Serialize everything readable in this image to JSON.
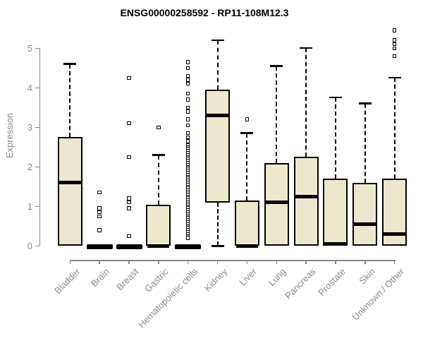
{
  "page": {
    "background": "#ffffff"
  },
  "chart_data": {
    "type": "boxplot",
    "title": "ENSG00000258592 - RP11-108M12.3",
    "ylabel": "Expression",
    "xlabel": "",
    "ylim": [
      0,
      5
    ],
    "yticks": [
      0,
      1,
      2,
      3,
      4,
      5
    ],
    "grid": false,
    "legend_position": "none",
    "categories": [
      "Bladder",
      "Brain",
      "Breast",
      "Gastric",
      "Hematopoietic cells",
      "Kidney",
      "Liver",
      "Lung",
      "Pancreas",
      "Prostate",
      "Skin",
      "Unknown / Other"
    ],
    "series": [
      {
        "name": "Bladder",
        "whisker_low": 0,
        "q1": 0,
        "median": 1.6,
        "q3": 2.75,
        "whisker_high": 4.6,
        "outliers": []
      },
      {
        "name": "Brain",
        "whisker_low": 0,
        "q1": 0,
        "median": 0,
        "q3": 0,
        "whisker_high": 0,
        "outliers": [
          1.35,
          0.95,
          0.85,
          0.75,
          0.4
        ]
      },
      {
        "name": "Breast",
        "whisker_low": 0,
        "q1": 0,
        "median": 0,
        "q3": 0,
        "whisker_high": 0,
        "outliers": [
          4.25,
          3.1,
          2.25,
          1.2,
          1.1,
          0.95,
          0.25
        ]
      },
      {
        "name": "Gastric",
        "whisker_low": 0,
        "q1": 0,
        "median": 0,
        "q3": 1.05,
        "whisker_high": 2.3,
        "outliers": [
          3.0
        ]
      },
      {
        "name": "Hematopoietic cells",
        "whisker_low": 0,
        "q1": 0,
        "median": 0,
        "q3": 0,
        "whisker_high": 0,
        "outliers": [
          4.65,
          4.5,
          4.3,
          4.2,
          4.1,
          3.85,
          3.7,
          3.5,
          3.4,
          3.2,
          3.05,
          2.85,
          2.75,
          2.65,
          2.55,
          2.5,
          2.45,
          2.4,
          2.35,
          2.3,
          2.25,
          2.2,
          2.15,
          2.1,
          2.05,
          2.0,
          1.95,
          1.9,
          1.85,
          1.8,
          1.75,
          1.7,
          1.65,
          1.6,
          1.55,
          1.5,
          1.45,
          1.4,
          1.35,
          1.3,
          1.25,
          1.2,
          1.15,
          1.1,
          1.05,
          1.0,
          0.95,
          0.9,
          0.85,
          0.8,
          0.75,
          0.7,
          0.65,
          0.6,
          0.55,
          0.5,
          0.45,
          0.4,
          0.35,
          0.3,
          0.25,
          0.2
        ]
      },
      {
        "name": "Kidney",
        "whisker_low": 0,
        "q1": 1.1,
        "median": 3.3,
        "q3": 3.95,
        "whisker_high": 5.2,
        "outliers": []
      },
      {
        "name": "Liver",
        "whisker_low": 0,
        "q1": 0,
        "median": 0,
        "q3": 1.15,
        "whisker_high": 2.85,
        "outliers": [
          3.2
        ]
      },
      {
        "name": "Lung",
        "whisker_low": 0,
        "q1": 0,
        "median": 1.1,
        "q3": 2.1,
        "whisker_high": 4.55,
        "outliers": []
      },
      {
        "name": "Pancreas",
        "whisker_low": 0,
        "q1": 0,
        "median": 1.25,
        "q3": 2.25,
        "whisker_high": 5.0,
        "outliers": []
      },
      {
        "name": "Prostate",
        "whisker_low": 0,
        "q1": 0,
        "median": 0.05,
        "q3": 1.7,
        "whisker_high": 3.75,
        "outliers": []
      },
      {
        "name": "Skin",
        "whisker_low": 0,
        "q1": 0,
        "median": 0.55,
        "q3": 1.6,
        "whisker_high": 3.6,
        "outliers": []
      },
      {
        "name": "Unknown / Other",
        "whisker_low": 0,
        "q1": 0,
        "median": 0.3,
        "q3": 1.7,
        "whisker_high": 4.25,
        "outliers": [
          5.45,
          5.2,
          5.1,
          5.0,
          4.8
        ]
      }
    ],
    "colors": {
      "box_fill": "#ece8cd",
      "box_border": "#000000",
      "median": "#000000",
      "whisker": "#000000",
      "outlier_fill": "#ffffff",
      "axis": "#888888",
      "label_text": "#8a8a8a",
      "title_text": "#000000"
    }
  }
}
